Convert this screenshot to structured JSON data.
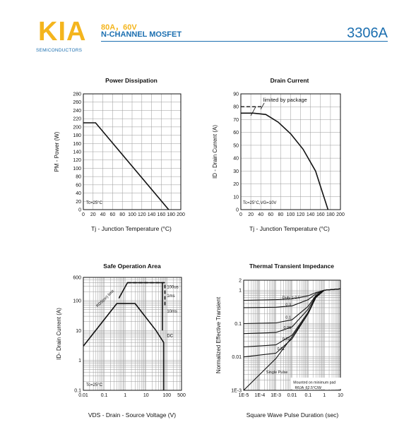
{
  "header": {
    "logo": "KIA",
    "logo_sub": "SEMICONDUCTORS",
    "spec_line1": "80A，60V",
    "spec_line2": "N-CHANNEL MOSFET",
    "part_number": "3306A"
  },
  "chart_data": [
    {
      "type": "line",
      "title": "Power Dissipation",
      "xlabel": "Tj - Junction Temperature (°C)",
      "ylabel": "PM - Power (W)",
      "xlim": [
        0,
        200
      ],
      "ylim": [
        0,
        280
      ],
      "x_ticks": [
        "0",
        "20",
        "40",
        "60",
        "80",
        "100",
        "120",
        "140",
        "160",
        "180",
        "200"
      ],
      "y_ticks": [
        "0",
        "20",
        "40",
        "60",
        "80",
        "100",
        "120",
        "140",
        "160",
        "180",
        "200",
        "220",
        "240",
        "260",
        "280"
      ],
      "annotation": "Tc=25°C",
      "series": [
        {
          "x": [
            0,
            25,
            175
          ],
          "y": [
            210,
            210,
            0
          ]
        }
      ]
    },
    {
      "type": "line",
      "title": "Drain Current",
      "xlabel": "Tj - Junction Temperature (°C)",
      "ylabel": "ID - Drain Current (A)",
      "xlim": [
        0,
        200
      ],
      "ylim": [
        0,
        90
      ],
      "x_ticks": [
        "0",
        "20",
        "40",
        "60",
        "80",
        "100",
        "120",
        "140",
        "160",
        "180",
        "200"
      ],
      "y_ticks": [
        "0",
        "10",
        "20",
        "30",
        "40",
        "50",
        "60",
        "70",
        "80",
        "90"
      ],
      "annotation": "Tc=25°C,VG=10V",
      "annotation2": "limited by package",
      "limit": {
        "x": [
          0,
          45
        ],
        "y": [
          80,
          80
        ]
      },
      "series": [
        {
          "x": [
            0,
            25,
            50,
            75,
            100,
            125,
            150,
            160,
            170,
            175
          ],
          "y": [
            75,
            75,
            74,
            68,
            59,
            47,
            30,
            18,
            6,
            0
          ]
        }
      ]
    },
    {
      "type": "line",
      "title": "Safe Operation Area",
      "xlabel": "VDS - Drain - Source Voltage (V)",
      "ylabel": "ID- Drain Current (A)",
      "x_scale": "log",
      "y_scale": "log",
      "xlim": [
        0.01,
        500
      ],
      "ylim": [
        0.1,
        600
      ],
      "x_ticks": [
        "0.01",
        "0.1",
        "1",
        "10",
        "100",
        "500"
      ],
      "y_ticks": [
        "0.1",
        "1",
        "10",
        "100",
        "600"
      ],
      "annotation": "Tc=25°C",
      "rds_label": "RDS(on) limit",
      "labels": [
        "100us",
        "1ms",
        "10ms",
        "DC"
      ],
      "series": [
        {
          "name": "DC",
          "x": [
            0.01,
            0.4,
            3,
            30,
            70,
            70
          ],
          "y": [
            3,
            80,
            80,
            10,
            4,
            0.1
          ]
        },
        {
          "name": "10ms",
          "x": [
            0.5,
            1.3,
            60,
            60
          ],
          "y": [
            120,
            400,
            400,
            10
          ]
        },
        {
          "name": "1ms",
          "x": [
            1.3,
            80,
            80
          ],
          "y": [
            400,
            400,
            60
          ]
        },
        {
          "name": "100us",
          "x": [
            1.3,
            80,
            80
          ],
          "y": [
            400,
            400,
            400
          ]
        }
      ]
    },
    {
      "type": "line",
      "title": "Thermal Transient Impedance",
      "xlabel": "Square Wave Pulse Duration (sec)",
      "ylabel": "Normalized Effective Transient",
      "x_scale": "log",
      "y_scale": "log",
      "xlim": [
        1e-05,
        10
      ],
      "ylim": [
        0.001,
        2
      ],
      "x_ticks": [
        "1E-5",
        "1E-4",
        "1E-3",
        "0.01",
        "0.1",
        "1",
        "10"
      ],
      "y_ticks": [
        "1E-3",
        "0.01",
        "0.1",
        "1",
        "2"
      ],
      "duty_label": "Duty = 0.5",
      "duty_values": [
        "0.5",
        "0.3",
        "0.1",
        "0.05",
        "0.02",
        "0.01"
      ],
      "single_label": "Single Pulse",
      "note1": "Mounted on minimum pad",
      "note2": "RθJA :62.5°C/W",
      "series": [
        {
          "name": "0.5",
          "x": [
            1e-05,
            0.001,
            0.01,
            0.1,
            0.3,
            1,
            10
          ],
          "y": [
            0.5,
            0.52,
            0.55,
            0.68,
            0.85,
            1,
            1.1
          ]
        },
        {
          "name": "0.3",
          "x": [
            1e-05,
            0.001,
            0.01,
            0.1,
            0.3,
            1,
            10
          ],
          "y": [
            0.3,
            0.31,
            0.34,
            0.52,
            0.78,
            1,
            1.1
          ]
        },
        {
          "name": "0.1",
          "x": [
            1e-05,
            0.001,
            0.01,
            0.1,
            0.3,
            1,
            10
          ],
          "y": [
            0.1,
            0.105,
            0.13,
            0.33,
            0.7,
            1,
            1.1
          ]
        },
        {
          "name": "0.05",
          "x": [
            1e-05,
            0.001,
            0.01,
            0.1,
            0.3,
            1,
            10
          ],
          "y": [
            0.05,
            0.054,
            0.08,
            0.27,
            0.66,
            1,
            1.1
          ]
        },
        {
          "name": "0.02",
          "x": [
            1e-05,
            0.001,
            0.01,
            0.1,
            0.3,
            1,
            10
          ],
          "y": [
            0.02,
            0.023,
            0.045,
            0.22,
            0.63,
            1,
            1.1
          ]
        },
        {
          "name": "0.01",
          "x": [
            1e-05,
            0.001,
            0.01,
            0.1,
            0.3,
            1,
            10
          ],
          "y": [
            0.01,
            0.013,
            0.035,
            0.2,
            0.62,
            1,
            1.1
          ]
        },
        {
          "name": "single",
          "x": [
            1e-05,
            0.0001,
            0.001,
            0.01,
            0.1,
            0.3,
            1,
            10
          ],
          "y": [
            0.001,
            0.003,
            0.009,
            0.04,
            0.2,
            0.6,
            1,
            1.1
          ]
        }
      ]
    }
  ]
}
